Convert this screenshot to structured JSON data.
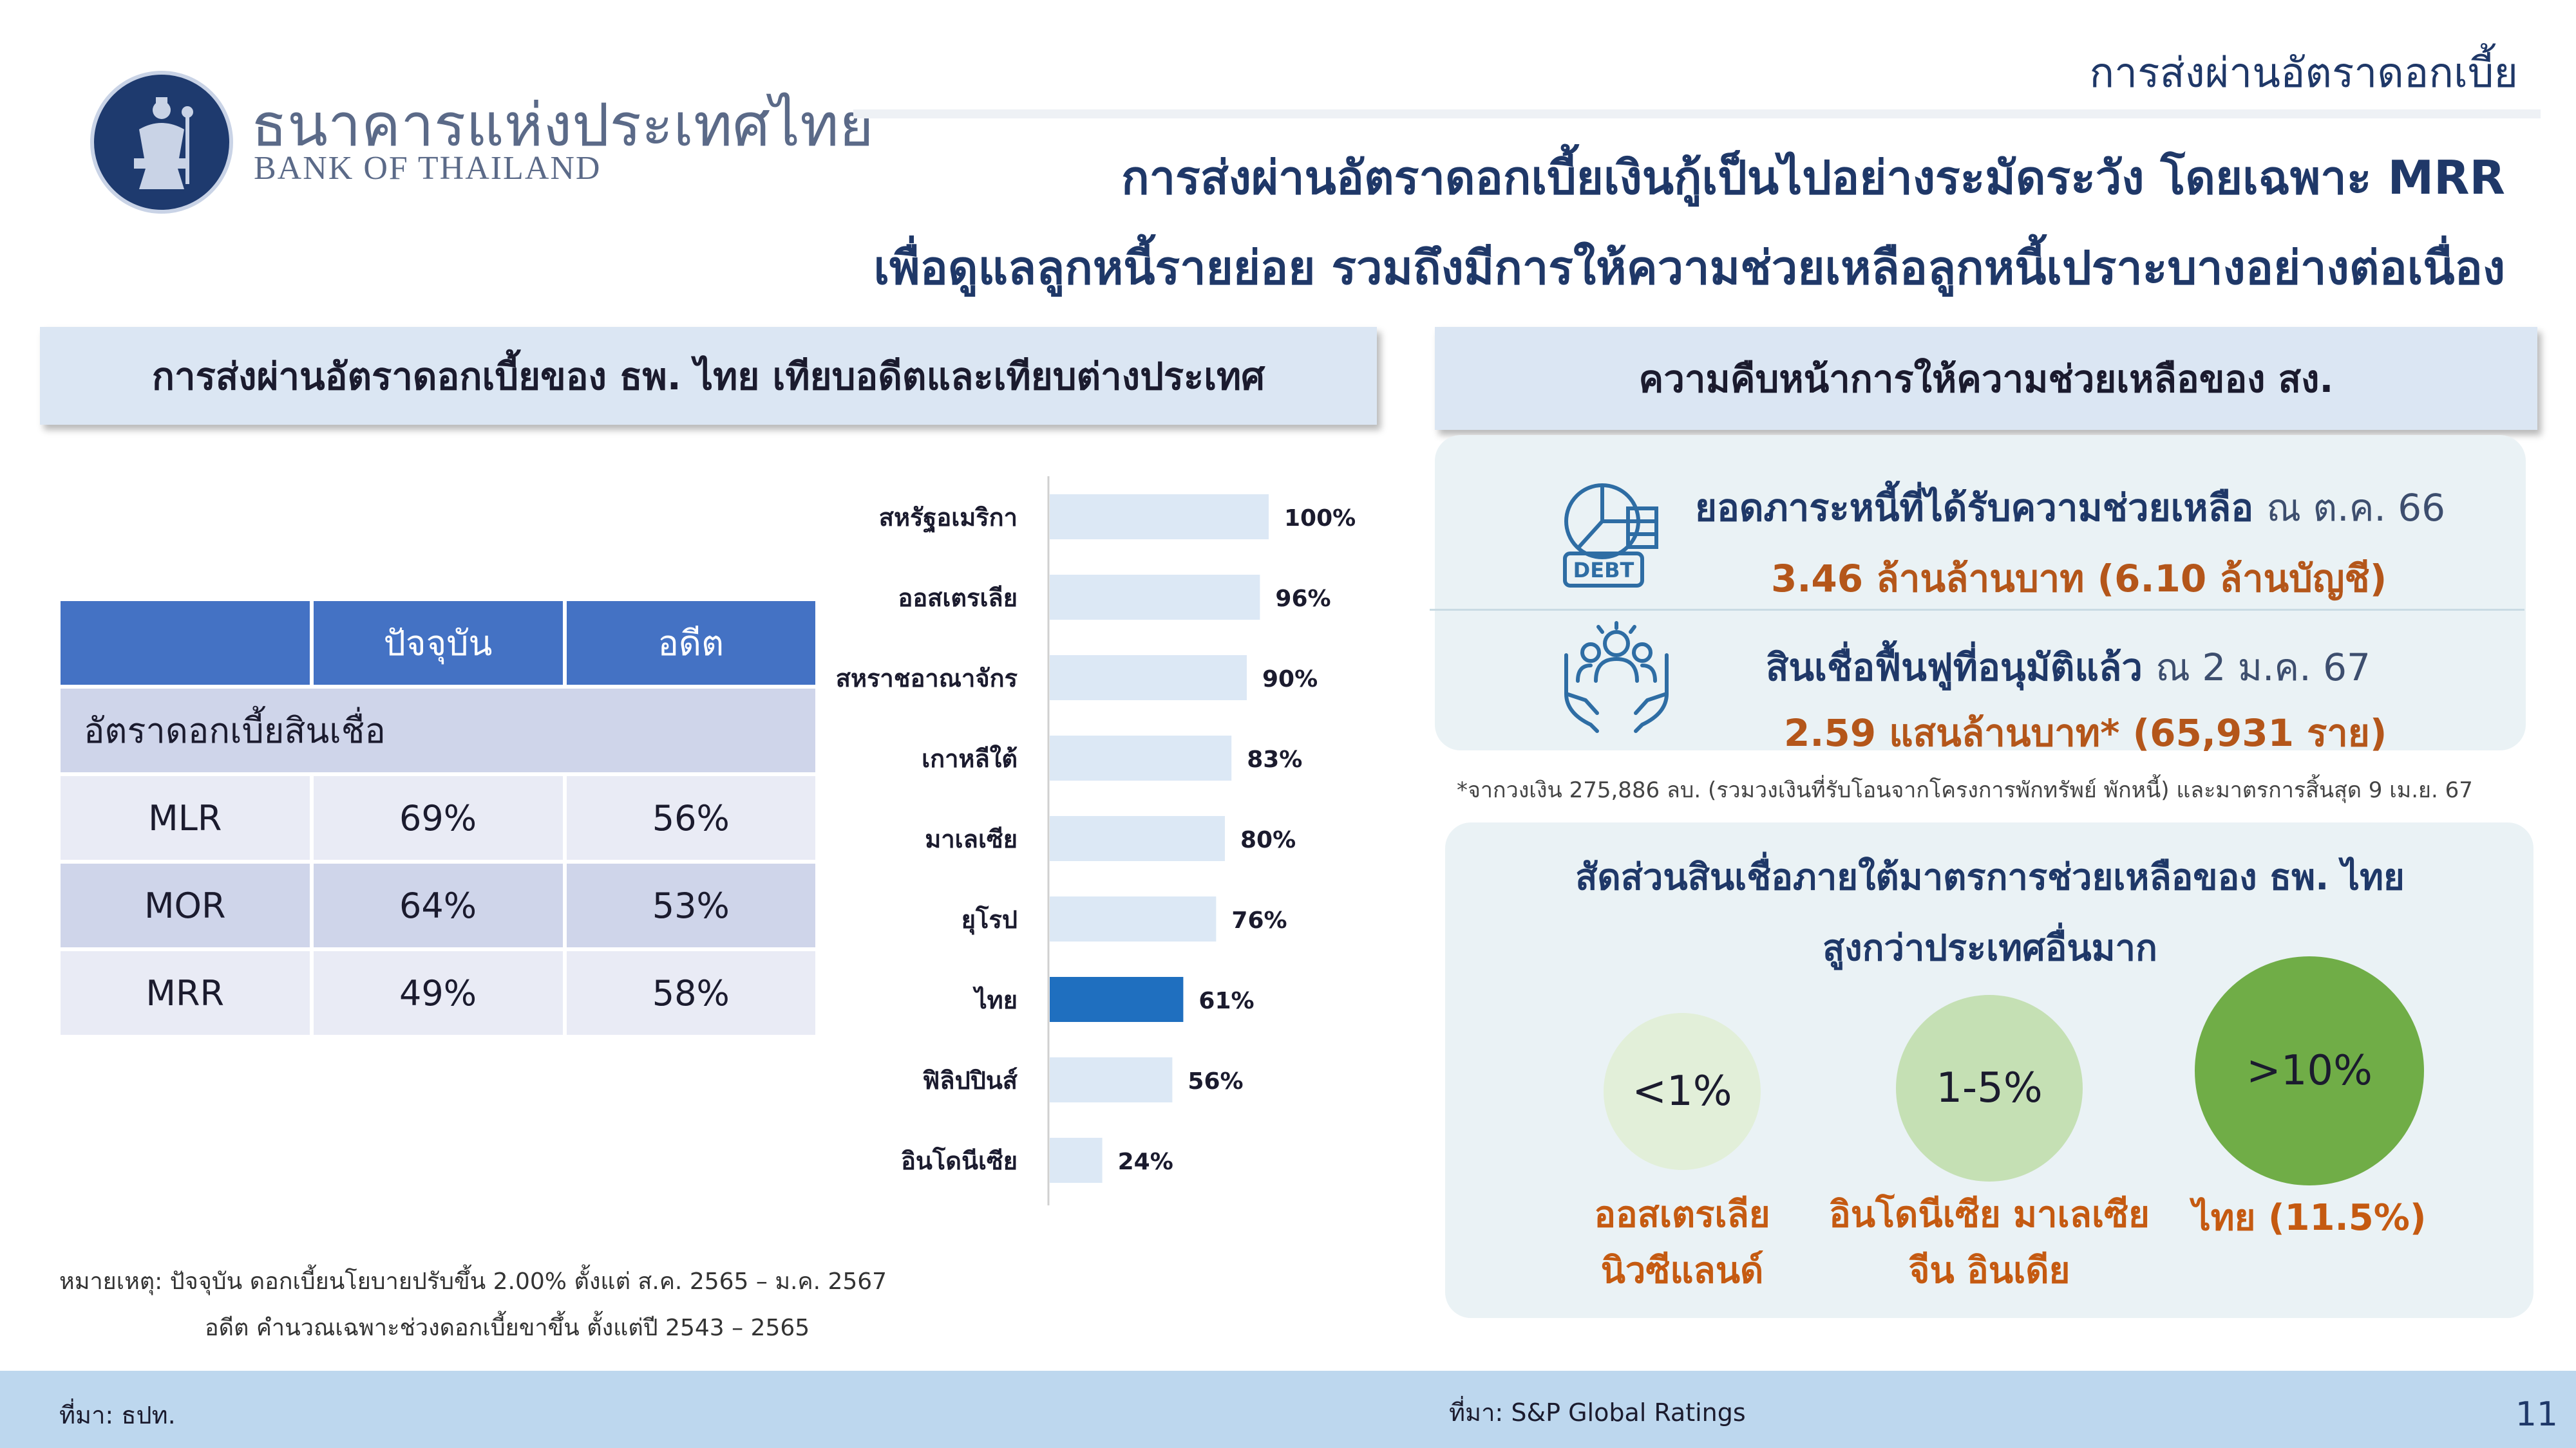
{
  "header": {
    "org_name_th": "ธนาคารแห่งประเทศไทย",
    "org_name_en": "BANK OF THAILAND",
    "section_tag": "การส่งผ่านอัตราดอกเบี้ย",
    "headline_line1": "การส่งผ่านอัตราดอกเบี้ยเงินกู้เป็นไปอย่างระมัดระวัง โดยเฉพาะ MRR",
    "headline_line2": "เพื่อดูแลลูกหนี้รายย่อย รวมถึงมีการให้ความช่วยเหลือลูกหนี้เปราะบางอย่างต่อเนื่อง"
  },
  "left_panel": {
    "title": "การส่งผ่านอัตราดอกเบี้ยของ ธพ. ไทย เทียบอดีตและเทียบต่างประเทศ",
    "table": {
      "headers": [
        "",
        "ปัจจุบัน",
        "อดีต"
      ],
      "group_label": "อัตราดอกเบี้ยสินเชื่อ",
      "rows": [
        {
          "label": "MLR",
          "current": "69%",
          "past": "56%"
        },
        {
          "label": "MOR",
          "current": "64%",
          "past": "53%"
        },
        {
          "label": "MRR",
          "current": "49%",
          "past": "58%"
        }
      ]
    },
    "note_line1": "หมายเหตุ: ปัจจุบัน ดอกเบี้ยนโยบายปรับขึ้น 2.00% ตั้งแต่ ส.ค. 2565 – ม.ค. 2567",
    "note_line2": "อดีต คำนวณเฉพาะช่วงดอกเบี้ยขาขึ้น ตั้งแต่ปี 2543 – 2565"
  },
  "chart_data": {
    "type": "bar",
    "orientation": "horizontal",
    "categories": [
      "สหรัฐอเมริกา",
      "ออสเตรเลีย",
      "สหราชอาณาจักร",
      "เกาหลีใต้",
      "มาเลเซีย",
      "ยุโรป",
      "ไทย",
      "ฟิลิปปินส์",
      "อินโดนีเซีย"
    ],
    "values": [
      100,
      96,
      90,
      83,
      80,
      76,
      61,
      56,
      24
    ],
    "value_labels": [
      "100%",
      "96%",
      "90%",
      "83%",
      "80%",
      "76%",
      "61%",
      "56%",
      "24%"
    ],
    "highlight_category": "ไทย",
    "colors": {
      "default": "#dce8f5",
      "highlight": "#1f6fbf"
    },
    "xlim": [
      0,
      100
    ],
    "grid": false
  },
  "right_panel": {
    "title": "ความคืบหน้าการให้ความช่วยเหลือของ สง.",
    "stat1": {
      "icon": "debt-chart-icon",
      "title": "ยอดภาระหนี้ที่ได้รับความช่วยเหลือ",
      "as_of": "ณ ต.ค. 66",
      "value": "3.46 ล้านล้านบาท (6.10 ล้านบัญชี)"
    },
    "stat2": {
      "icon": "hands-people-icon",
      "title": "สินเชื่อฟื้นฟูที่อนุมัติแล้ว",
      "as_of": "ณ 2 ม.ค. 67",
      "value": "2.59 แสนล้านบาท* (65,931 ราย)"
    },
    "footnote": "*จากวงเงิน 275,886 ลบ. (รวมวงเงินที่รับโอนจากโครงการพักทรัพย์ พักหนี้) และมาตรการสิ้นสุด 9 เม.ย. 67",
    "ratio": {
      "title_line1": "สัดส่วนสินเชื่อภายใต้มาตรการช่วยเหลือของ ธพ. ไทย",
      "title_line2": "สูงกว่าประเทศอื่นมาก",
      "circles": [
        {
          "value": "<1%",
          "label_line1": "ออสเตรเลีย",
          "label_line2": "นิวซีแลนด์",
          "color": "#e2efd9"
        },
        {
          "value": "1-5%",
          "label_line1": "อินโดนีเซีย มาเลเซีย",
          "label_line2": "จีน อินเดีย",
          "color": "#c5e0b4"
        },
        {
          "value": ">10%",
          "label_line1": "ไทย (11.5%)",
          "label_line2": "",
          "color": "#70ad47"
        }
      ]
    }
  },
  "footer": {
    "source_left": "ที่มา: ธปท.",
    "source_center": "ที่มา: S&P Global Ratings",
    "page_number": "11"
  }
}
